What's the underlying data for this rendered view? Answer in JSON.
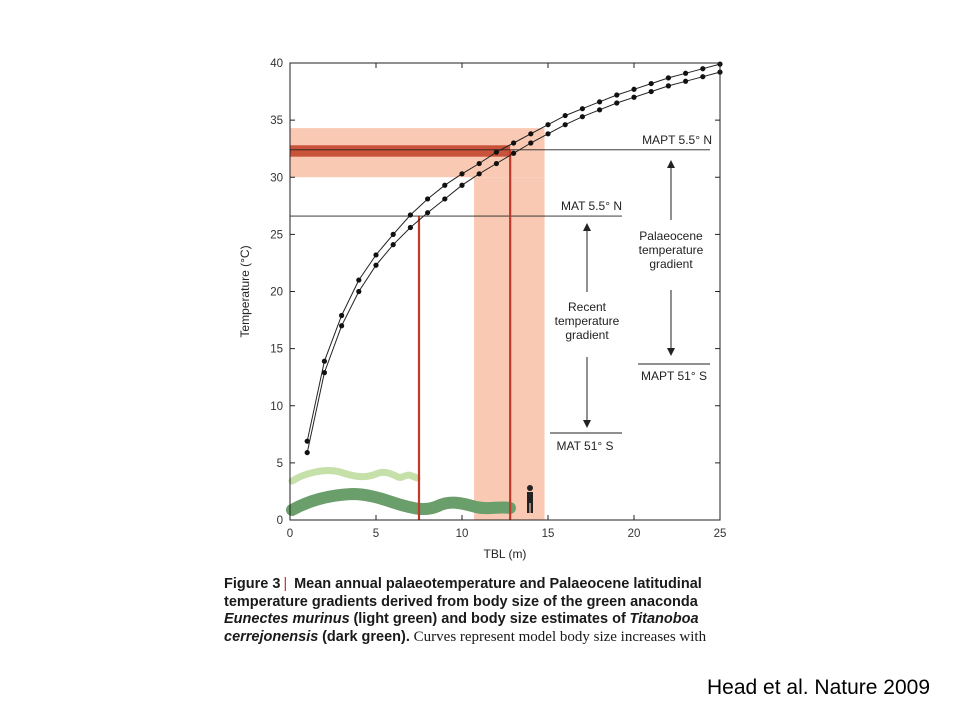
{
  "chart_data": {
    "type": "line",
    "xlabel": "TBL (m)",
    "ylabel": "Temperature (°C)",
    "xlim": [
      0,
      25
    ],
    "ylim": [
      0,
      40
    ],
    "x_ticks": [
      "0",
      "5",
      "10",
      "15",
      "20",
      "25"
    ],
    "y_ticks": [
      "0",
      "5",
      "10",
      "15",
      "20",
      "25",
      "30",
      "35",
      "40"
    ],
    "grid": false,
    "legend": "none",
    "series": [
      {
        "style": "line-with-markers",
        "x": [
          1,
          2,
          3,
          4,
          5,
          6,
          7,
          8,
          9,
          10,
          11,
          12,
          13,
          14,
          15,
          16,
          17,
          18,
          19,
          20,
          21,
          22,
          23,
          24,
          25
        ],
        "y": [
          6.9,
          13.9,
          17.9,
          21.0,
          23.2,
          25.0,
          26.7,
          28.1,
          29.3,
          30.3,
          31.2,
          32.2,
          33.0,
          33.8,
          34.6,
          35.4,
          36.0,
          36.6,
          37.2,
          37.7,
          38.2,
          38.7,
          39.1,
          39.5,
          39.9
        ]
      },
      {
        "style": "line-with-markers",
        "x": [
          1,
          2,
          3,
          4,
          5,
          6,
          7,
          8,
          9,
          10,
          11,
          12,
          13,
          14,
          15,
          16,
          17,
          18,
          19,
          20,
          21,
          22,
          23,
          24,
          25
        ],
        "y": [
          5.9,
          12.9,
          17.0,
          20.0,
          22.3,
          24.1,
          25.6,
          26.9,
          28.1,
          29.3,
          30.3,
          31.2,
          32.1,
          33.0,
          33.8,
          34.6,
          35.3,
          35.9,
          36.5,
          37.0,
          37.5,
          38.0,
          38.4,
          38.8,
          39.2
        ]
      }
    ],
    "lines": {
      "mapt_north": 32.4,
      "mat_north": 26.6,
      "mat_north_x": 7.5,
      "titanoboa_x": 12.8
    },
    "bands": {
      "temp_band": [
        30.0,
        34.3
      ],
      "temp_core": [
        31.8,
        32.8
      ],
      "tbl_band": [
        10.7,
        14.8
      ]
    },
    "annotations": {
      "mapt_north": "MAPT 5.5° N",
      "mat_north": "MAT 5.5° N",
      "palaeocene": [
        "Palaeocene",
        "temperature",
        "gradient"
      ],
      "recent": [
        "Recent",
        "temperature",
        "gradient"
      ],
      "mapt_south": "MAPT 51° S",
      "mat_south": "MAT 51° S"
    },
    "colors": {
      "band": "#f9c9b4",
      "band_core": "#c9533a",
      "red_line": "#c0392b",
      "light_green": "#c5e0a8",
      "dark_green": "#6a9e6a"
    }
  },
  "caption": {
    "label": "Figure 3",
    "bold_text": "Mean annual palaeotemperature and Palaeocene latitudinal temperature gradients derived from body size of the green anaconda",
    "species1": "Eunectes murinus",
    "mid_text": "(light green) and body size estimates of",
    "species2": "Titanoboa cerrejonensis",
    "tail_bold": "(dark green).",
    "rest": "Curves represent model body size increases with"
  },
  "credit": "Head et al. Nature 2009"
}
